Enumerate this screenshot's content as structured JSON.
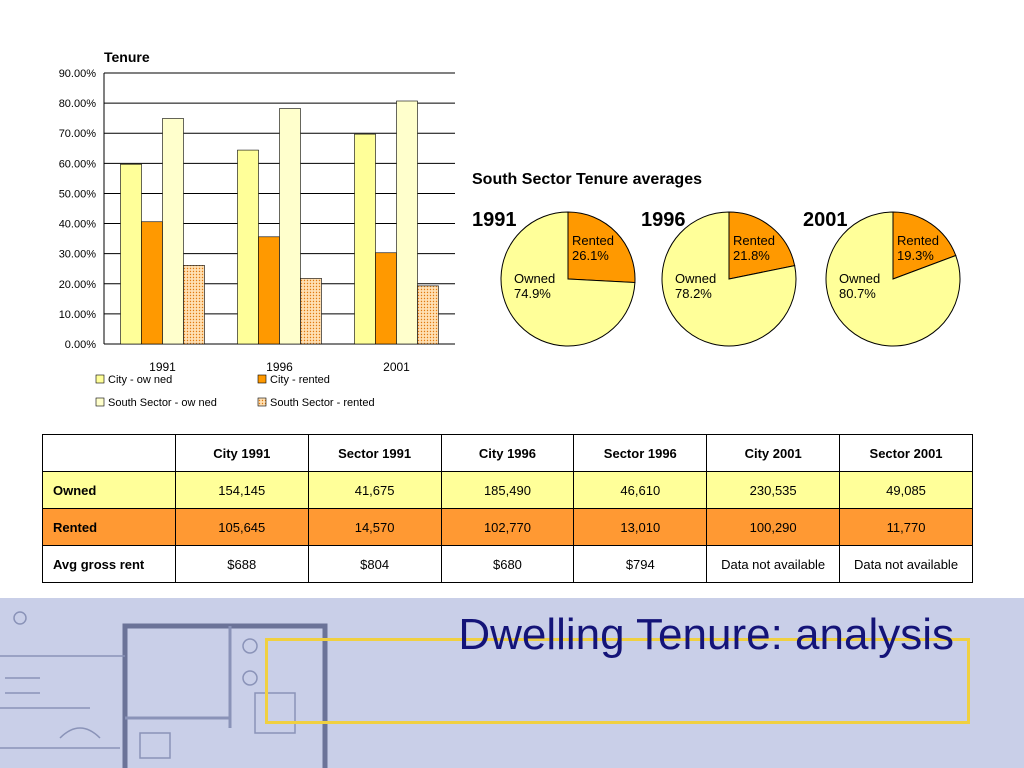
{
  "chart_data": [
    {
      "type": "bar",
      "title": "Tenure",
      "categories": [
        "1991",
        "1996",
        "2001"
      ],
      "series": [
        {
          "name": "City - ow ned",
          "values": [
            59.7,
            64.4,
            69.7
          ],
          "color": "#ffff99",
          "pattern": "solid"
        },
        {
          "name": "City - rented",
          "values": [
            40.6,
            35.6,
            30.3
          ],
          "color": "#ff9900",
          "pattern": "solid"
        },
        {
          "name": "South Sector - ow ned",
          "values": [
            74.9,
            78.2,
            80.7
          ],
          "color": "#ffffcc",
          "pattern": "solid"
        },
        {
          "name": "South Sector - rented",
          "values": [
            26.1,
            21.8,
            19.3
          ],
          "color": "#ffcc99",
          "pattern": "dotted"
        }
      ],
      "ylim": [
        0,
        90
      ],
      "yticks": [
        "0.00%",
        "10.00%",
        "20.00%",
        "30.00%",
        "40.00%",
        "50.00%",
        "60.00%",
        "70.00%",
        "80.00%",
        "90.00%"
      ],
      "grid": true,
      "legend": "bottom"
    },
    {
      "type": "pie",
      "title": "South Sector Tenure averages",
      "charts": [
        {
          "year": "1991",
          "slices": [
            {
              "label": "Rented",
              "value": 26.1,
              "text": "26.1%",
              "color": "#ff9900"
            },
            {
              "label": "Owned",
              "value": 74.9,
              "text": "74.9%",
              "color": "#ffff99"
            }
          ]
        },
        {
          "year": "1996",
          "slices": [
            {
              "label": "Rented",
              "value": 21.8,
              "text": "21.8%",
              "color": "#ff9900"
            },
            {
              "label": "Owned",
              "value": 78.2,
              "text": "78.2%",
              "color": "#ffff99"
            }
          ]
        },
        {
          "year": "2001",
          "slices": [
            {
              "label": "Rented",
              "value": 19.3,
              "text": "19.3%",
              "color": "#ff9900"
            },
            {
              "label": "Owned",
              "value": 80.7,
              "text": "80.7%",
              "color": "#ffff99"
            }
          ]
        }
      ]
    }
  ],
  "table": {
    "headers": [
      "",
      "City 1991",
      "Sector 1991",
      "City 1996",
      "Sector 1996",
      "City 2001",
      "Sector 2001"
    ],
    "rows": [
      {
        "label": "Owned",
        "cells": [
          "154,145",
          "41,675",
          "185,490",
          "46,610",
          "230,535",
          "49,085"
        ]
      },
      {
        "label": "Rented",
        "cells": [
          "105,645",
          "14,570",
          "102,770",
          "13,010",
          "100,290",
          "11,770"
        ]
      },
      {
        "label": "Avg gross rent",
        "cells": [
          "$688",
          "$804",
          "$680",
          "$794",
          "Data not available",
          "Data not available"
        ]
      }
    ]
  },
  "slide_title": "Dwelling Tenure: analysis",
  "colors": {
    "footer_bg": "#c9cfe8",
    "title_text": "#141478",
    "title_border": "#f0d040"
  }
}
